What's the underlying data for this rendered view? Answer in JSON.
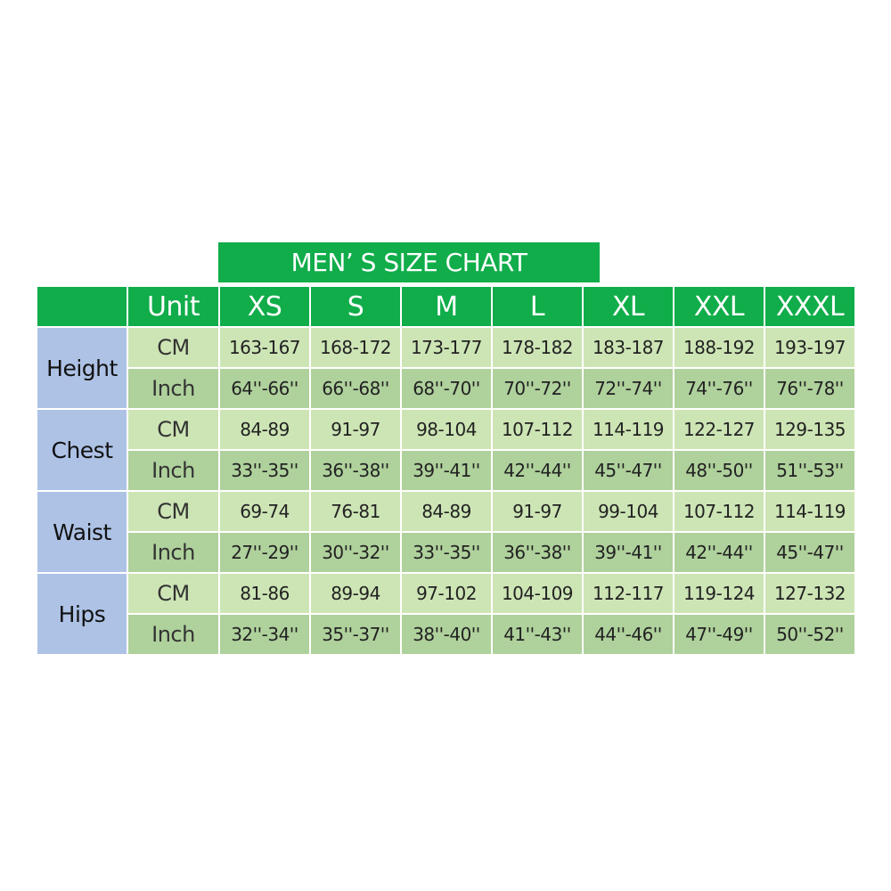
{
  "title": "MEN’ S SIZE CHART",
  "header": {
    "unit_label": "Unit",
    "sizes": [
      "XS",
      "S",
      "M",
      "L",
      "XL",
      "XXL",
      "XXXL"
    ]
  },
  "colors": {
    "header_green": "#10ad4a",
    "category_blue": "#adc2e5",
    "cm_row": "#cde5b5",
    "inch_row": "#afd19c"
  },
  "rows": [
    {
      "category": "Height",
      "cm": {
        "unit": "CM",
        "values": [
          "163-167",
          "168-172",
          "173-177",
          "178-182",
          "183-187",
          "188-192",
          "193-197"
        ]
      },
      "inch": {
        "unit": "Inch",
        "values": [
          "64''-66''",
          "66''-68''",
          "68''-70''",
          "70''-72''",
          "72''-74''",
          "74''-76''",
          "76''-78''"
        ]
      }
    },
    {
      "category": "Chest",
      "cm": {
        "unit": "CM",
        "values": [
          "84-89",
          "91-97",
          "98-104",
          "107-112",
          "114-119",
          "122-127",
          "129-135"
        ]
      },
      "inch": {
        "unit": "Inch",
        "values": [
          "33''-35''",
          "36''-38''",
          "39''-41''",
          "42''-44''",
          "45''-47''",
          "48''-50''",
          "51''-53''"
        ]
      }
    },
    {
      "category": "Waist",
      "cm": {
        "unit": "CM",
        "values": [
          "69-74",
          "76-81",
          "84-89",
          "91-97",
          "99-104",
          "107-112",
          "114-119"
        ]
      },
      "inch": {
        "unit": "Inch",
        "values": [
          "27''-29''",
          "30''-32''",
          "33''-35''",
          "36''-38''",
          "39''-41''",
          "42''-44''",
          "45''-47''"
        ]
      }
    },
    {
      "category": "Hips",
      "cm": {
        "unit": "CM",
        "values": [
          "81-86",
          "89-94",
          "97-102",
          "104-109",
          "112-117",
          "119-124",
          "127-132"
        ]
      },
      "inch": {
        "unit": "Inch",
        "values": [
          "32''-34''",
          "35''-37''",
          "38''-40''",
          "41''-43''",
          "44''-46''",
          "47''-49''",
          "50''-52''"
        ]
      }
    }
  ]
}
